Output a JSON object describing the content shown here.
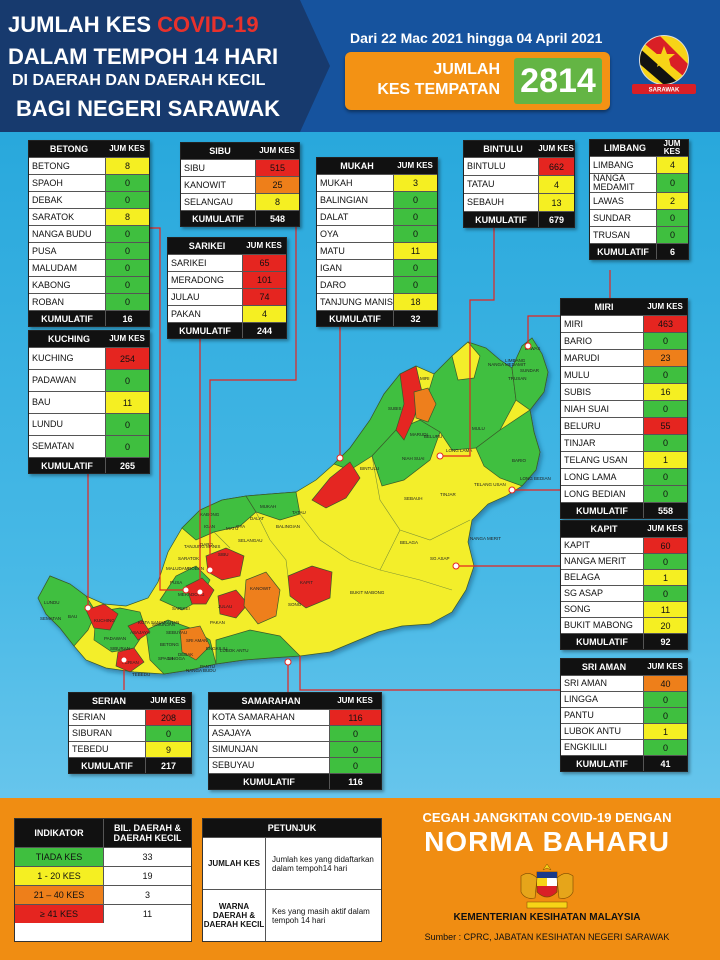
{
  "header": {
    "line1": "JUMLAH KES ",
    "line1_highlight": "COVID-19",
    "line2": "DALAM TEMPOH 14 HARI",
    "line3": "DI DAERAH DAN DAERAH KECIL",
    "line4": "BAGI NEGERI SARAWAK",
    "date_range": "Dari 22 Mac 2021 hingga 04 April 2021",
    "total_label_1": "JUMLAH",
    "total_label_2": "KES TEMPATAN",
    "total_value": "2814",
    "emblem_text": "SARAWAK"
  },
  "colors": {
    "tiada": "#3fbf3f",
    "low": "#f5ef22",
    "mid": "#ee7f1a",
    "high": "#e52520"
  },
  "tables": {
    "betong": {
      "title": "BETONG",
      "col": "JUM KES",
      "rows": [
        {
          "n": "BETONG",
          "v": "8",
          "c": "y"
        },
        {
          "n": "SPAOH",
          "v": "0",
          "c": "g"
        },
        {
          "n": "DEBAK",
          "v": "0",
          "c": "g"
        },
        {
          "n": "SARATOK",
          "v": "8",
          "c": "y"
        },
        {
          "n": "NANGA BUDU",
          "v": "0",
          "c": "g"
        },
        {
          "n": "PUSA",
          "v": "0",
          "c": "g"
        },
        {
          "n": "MALUDAM",
          "v": "0",
          "c": "g"
        },
        {
          "n": "KABONG",
          "v": "0",
          "c": "g"
        },
        {
          "n": "ROBAN",
          "v": "0",
          "c": "g"
        }
      ],
      "total_label": "KUMULATIF",
      "total": "16"
    },
    "sibu": {
      "title": "SIBU",
      "col": "JUM KES",
      "rows": [
        {
          "n": "SIBU",
          "v": "515",
          "c": "r"
        },
        {
          "n": "KANOWIT",
          "v": "25",
          "c": "o"
        },
        {
          "n": "SELANGAU",
          "v": "8",
          "c": "y"
        }
      ],
      "total_label": "KUMULATIF",
      "total": "548"
    },
    "sarikei": {
      "title": "SARIKEI",
      "col": "JUM KES",
      "rows": [
        {
          "n": "SARIKEI",
          "v": "65",
          "c": "r"
        },
        {
          "n": "MERADONG",
          "v": "101",
          "c": "r"
        },
        {
          "n": "JULAU",
          "v": "74",
          "c": "r"
        },
        {
          "n": "PAKAN",
          "v": "4",
          "c": "y"
        }
      ],
      "total_label": "KUMULATIF",
      "total": "244"
    },
    "mukah": {
      "title": "MUKAH",
      "col": "JUM KES",
      "rows": [
        {
          "n": "MUKAH",
          "v": "3",
          "c": "y"
        },
        {
          "n": "BALINGIAN",
          "v": "0",
          "c": "g"
        },
        {
          "n": "DALAT",
          "v": "0",
          "c": "g"
        },
        {
          "n": "OYA",
          "v": "0",
          "c": "g"
        },
        {
          "n": "MATU",
          "v": "11",
          "c": "y"
        },
        {
          "n": "IGAN",
          "v": "0",
          "c": "g"
        },
        {
          "n": "DARO",
          "v": "0",
          "c": "g"
        },
        {
          "n": "TANJUNG MANIS",
          "v": "18",
          "c": "y"
        }
      ],
      "total_label": "KUMULATIF",
      "total": "32"
    },
    "bintulu": {
      "title": "BINTULU",
      "col": "JUM KES",
      "rows": [
        {
          "n": "BINTULU",
          "v": "662",
          "c": "r"
        },
        {
          "n": "TATAU",
          "v": "4",
          "c": "y"
        },
        {
          "n": "SEBAUH",
          "v": "13",
          "c": "y"
        }
      ],
      "total_label": "KUMULATIF",
      "total": "679"
    },
    "limbang": {
      "title": "LIMBANG",
      "col": "JUM KES",
      "rows": [
        {
          "n": "LIMBANG",
          "v": "4",
          "c": "y"
        },
        {
          "n": "NANGA MEDAMIT",
          "v": "0",
          "c": "g"
        },
        {
          "n": "LAWAS",
          "v": "2",
          "c": "y"
        },
        {
          "n": "SUNDAR",
          "v": "0",
          "c": "g"
        },
        {
          "n": "TRUSAN",
          "v": "0",
          "c": "g"
        }
      ],
      "total_label": "KUMULATIF",
      "total": "6"
    },
    "kuching": {
      "title": "KUCHING",
      "col": "JUM KES",
      "rows": [
        {
          "n": "KUCHING",
          "v": "254",
          "c": "r"
        },
        {
          "n": "PADAWAN",
          "v": "0",
          "c": "g"
        },
        {
          "n": "BAU",
          "v": "11",
          "c": "y"
        },
        {
          "n": "LUNDU",
          "v": "0",
          "c": "g"
        },
        {
          "n": "SEMATAN",
          "v": "0",
          "c": "g"
        }
      ],
      "total_label": "KUMULATIF",
      "total": "265"
    },
    "miri": {
      "title": "MIRI",
      "col": "JUM KES",
      "rows": [
        {
          "n": "MIRI",
          "v": "463",
          "c": "r"
        },
        {
          "n": "BARIO",
          "v": "0",
          "c": "g"
        },
        {
          "n": "MARUDI",
          "v": "23",
          "c": "o"
        },
        {
          "n": "MULU",
          "v": "0",
          "c": "g"
        },
        {
          "n": "SUBIS",
          "v": "16",
          "c": "y"
        },
        {
          "n": "NIAH SUAI",
          "v": "0",
          "c": "g"
        },
        {
          "n": "BELURU",
          "v": "55",
          "c": "r"
        },
        {
          "n": "TINJAR",
          "v": "0",
          "c": "g"
        },
        {
          "n": "TELANG USAN",
          "v": "1",
          "c": "y"
        },
        {
          "n": "LONG LAMA",
          "v": "0",
          "c": "g"
        },
        {
          "n": "LONG BEDIAN",
          "v": "0",
          "c": "g"
        }
      ],
      "total_label": "KUMULATIF",
      "total": "558"
    },
    "kapit": {
      "title": "KAPIT",
      "col": "JUM KES",
      "rows": [
        {
          "n": "KAPIT",
          "v": "60",
          "c": "r"
        },
        {
          "n": "NANGA MERIT",
          "v": "0",
          "c": "g"
        },
        {
          "n": "BELAGA",
          "v": "1",
          "c": "y"
        },
        {
          "n": "SG ASAP",
          "v": "0",
          "c": "g"
        },
        {
          "n": "SONG",
          "v": "11",
          "c": "y"
        },
        {
          "n": "BUKIT MABONG",
          "v": "20",
          "c": "y"
        }
      ],
      "total_label": "KUMULATIF",
      "total": "92"
    },
    "sriaman": {
      "title": "SRI AMAN",
      "col": "JUM KES",
      "rows": [
        {
          "n": "SRI AMAN",
          "v": "40",
          "c": "o"
        },
        {
          "n": "LINGGA",
          "v": "0",
          "c": "g"
        },
        {
          "n": "PANTU",
          "v": "0",
          "c": "g"
        },
        {
          "n": "LUBOK ANTU",
          "v": "1",
          "c": "y"
        },
        {
          "n": "ENGKILILI",
          "v": "0",
          "c": "g"
        }
      ],
      "total_label": "KUMULATIF",
      "total": "41"
    },
    "serian": {
      "title": "SERIAN",
      "col": "JUM KES",
      "rows": [
        {
          "n": "SERIAN",
          "v": "208",
          "c": "r"
        },
        {
          "n": "SIBURAN",
          "v": "0",
          "c": "g"
        },
        {
          "n": "TEBEDU",
          "v": "9",
          "c": "y"
        }
      ],
      "total_label": "KUMULATIF",
      "total": "217"
    },
    "samarahan": {
      "title": "SAMARAHAN",
      "col": "JUM KES",
      "rows": [
        {
          "n": "KOTA SAMARAHAN",
          "v": "116",
          "c": "r"
        },
        {
          "n": "ASAJAYA",
          "v": "0",
          "c": "g"
        },
        {
          "n": "SIMUNJAN",
          "v": "0",
          "c": "g"
        },
        {
          "n": "SEBUYAU",
          "v": "0",
          "c": "g"
        }
      ],
      "total_label": "KUMULATIF",
      "total": "116"
    }
  },
  "map_labels": [
    "LIMBANG",
    "LAWAS",
    "TRUSAN",
    "SUNDAR",
    "NANGA MEDAMIT",
    "MIRI",
    "SUBIS",
    "BELURU",
    "MARUDI",
    "LONG LAMA",
    "TELANG USAN",
    "BARIO",
    "BINTULU",
    "SEBAUH",
    "TATAU",
    "MUKAH",
    "DALAT",
    "BALINGIAN",
    "BELAGA",
    "KAPIT",
    "SELANGAU",
    "SIBU",
    "KANOWIT",
    "SONG",
    "BUKIT MABONG",
    "JULAU",
    "PAKAN",
    "MERADONG",
    "SARIKEI",
    "BETONG",
    "SARATOK",
    "SRI AMAN",
    "LUBOK ANTU",
    "KUCHING",
    "BAU",
    "LUNDU",
    "SERIAN",
    "TEBEDU",
    "SIBURAN",
    "PADAWAN",
    "ENGKILILI",
    "NIAH SUAI",
    "TINJAR",
    "LONG BEDIAN",
    "MULU",
    "OYA",
    "IGAN",
    "DARO",
    "MATU",
    "TANJUNG MANIS",
    "SEMATAN",
    "ASAJAYA",
    "SIMUNJAN",
    "SEBUYAU",
    "LINGGA",
    "PANTU",
    "KABONG",
    "ROBAN",
    "PUSA",
    "MALUDAM",
    "SPAOH",
    "DEBAK",
    "NANGA BUDU",
    "NANGA MERIT",
    "SG ASAP",
    "KOTA SAMARAHAN"
  ],
  "legend": {
    "col1": "INDIKATOR",
    "col2": "BIL. DAERAH & DAERAH KECIL",
    "rows": [
      {
        "label": "TIADA KES",
        "count": "33",
        "c": "g"
      },
      {
        "label": "1 - 20 KES",
        "count": "19",
        "c": "y"
      },
      {
        "label": "21 – 40 KES",
        "count": "3",
        "c": "o"
      },
      {
        "label": "≥ 41 KES",
        "count": "11",
        "c": "r"
      }
    ]
  },
  "petunjuk": {
    "title": "PETUNJUK",
    "rows": [
      {
        "k": "JUMLAH KES",
        "d": "Jumlah kes yang didaftarkan dalam tempoh14 hari"
      },
      {
        "k": "WARNA DAERAH & DAERAH KECIL",
        "d": "Kes yang masih aktif dalam tempoh 14 hari"
      }
    ]
  },
  "footer": {
    "slogan1": "CEGAH JANGKITAN COVID-19 DENGAN",
    "slogan2": "NORMA BAHARU",
    "ministry": "KEMENTERIAN KESIHATAN MALAYSIA",
    "source": "Sumber : CPRC, JABATAN KESIHATAN NEGERI SARAWAK"
  }
}
